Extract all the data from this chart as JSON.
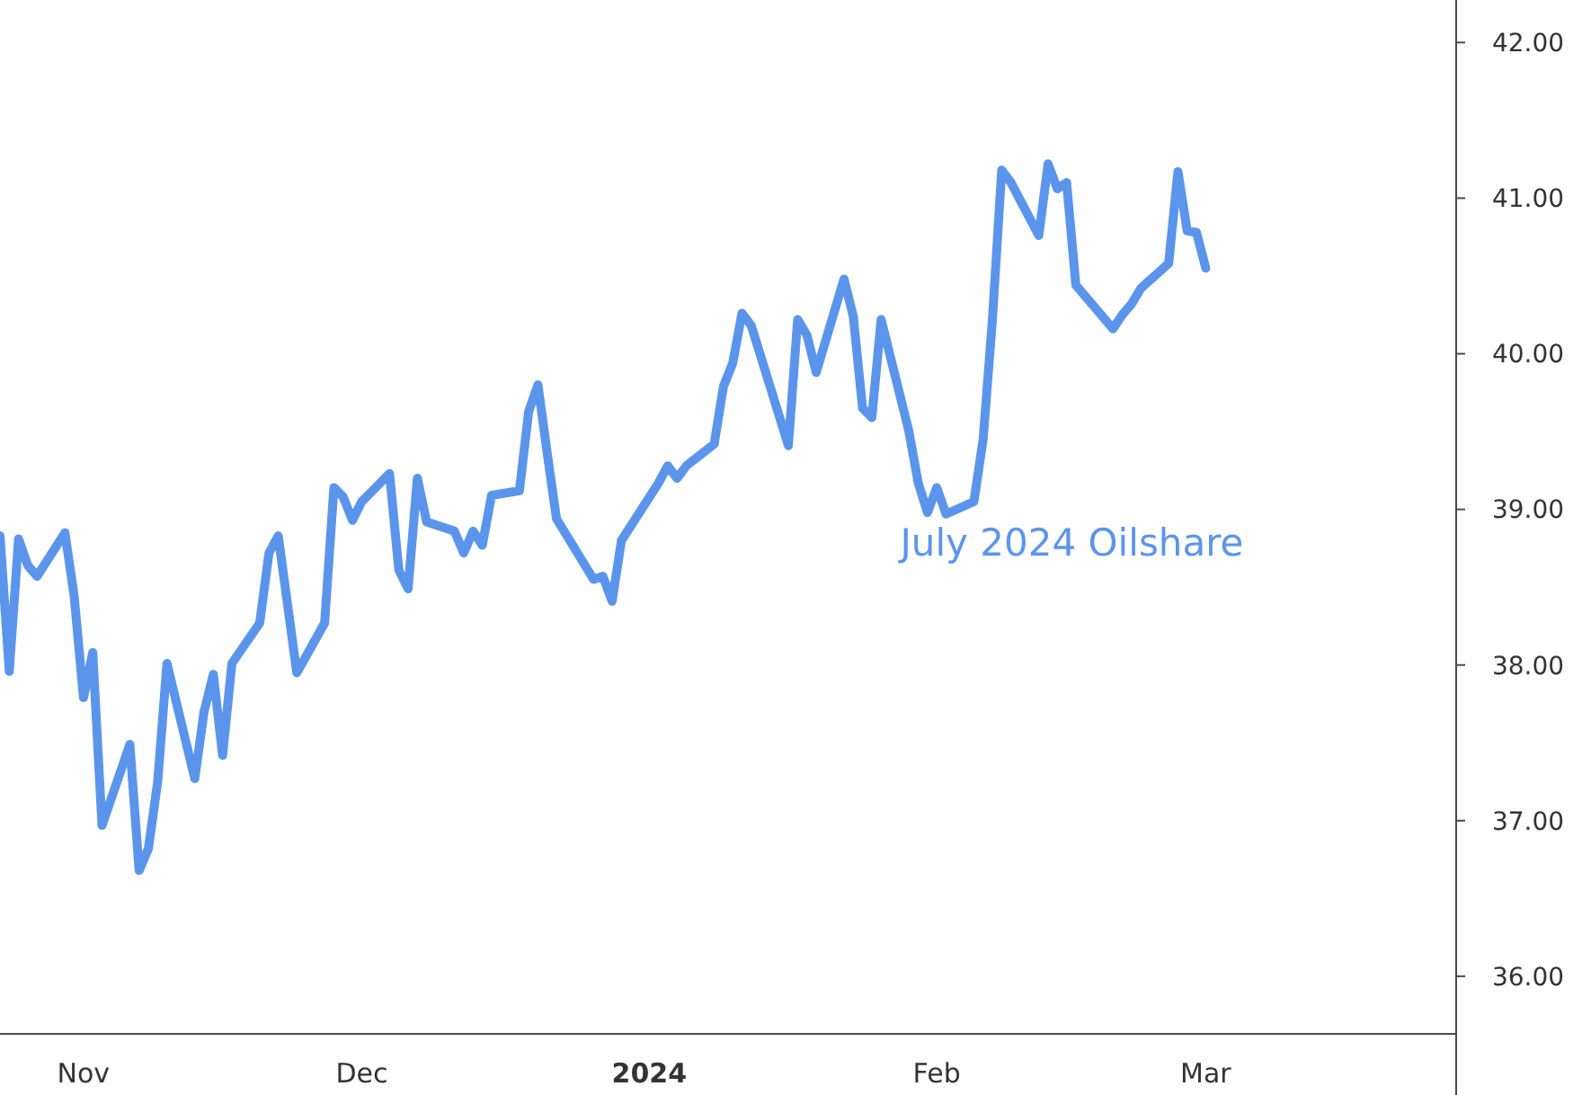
{
  "chart_data": {
    "type": "line",
    "xlim": [
      "2023-10-23",
      "2024-03-28"
    ],
    "ylim": [
      35.63,
      42.25
    ],
    "xticks": [
      {
        "value": "2023-11-01",
        "label": "Nov"
      },
      {
        "value": "2023-12-01",
        "label": "Dec"
      },
      {
        "value": "2024-01-01",
        "label": "2024"
      },
      {
        "value": "2024-02-01",
        "label": "Feb"
      },
      {
        "value": "2024-03-01",
        "label": "Mar"
      }
    ],
    "yticks": [
      {
        "value": 36,
        "label": "36.00"
      },
      {
        "value": 37,
        "label": "37.00"
      },
      {
        "value": 38,
        "label": "38.00"
      },
      {
        "value": 39,
        "label": "39.00"
      },
      {
        "value": 40,
        "label": "40.00"
      },
      {
        "value": 41,
        "label": "41.00"
      },
      {
        "value": 42,
        "label": "42.00"
      }
    ],
    "grid": false,
    "series": [
      {
        "name": "July 2024 Oilshare",
        "color": "#5b95eb",
        "x": [
          "2023-10-23",
          "2023-10-24",
          "2023-10-25",
          "2023-10-26",
          "2023-10-27",
          "2023-10-30",
          "2023-10-31",
          "2023-11-01",
          "2023-11-02",
          "2023-11-03",
          "2023-11-06",
          "2023-11-07",
          "2023-11-08",
          "2023-11-09",
          "2023-11-10",
          "2023-11-13",
          "2023-11-14",
          "2023-11-15",
          "2023-11-16",
          "2023-11-17",
          "2023-11-20",
          "2023-11-21",
          "2023-11-22",
          "2023-11-24",
          "2023-11-27",
          "2023-11-28",
          "2023-11-29",
          "2023-11-30",
          "2023-12-01",
          "2023-12-04",
          "2023-12-05",
          "2023-12-06",
          "2023-12-07",
          "2023-12-08",
          "2023-12-11",
          "2023-12-12",
          "2023-12-13",
          "2023-12-14",
          "2023-12-15",
          "2023-12-18",
          "2023-12-19",
          "2023-12-20",
          "2023-12-21",
          "2023-12-22",
          "2023-12-26",
          "2023-12-27",
          "2023-12-28",
          "2023-12-29",
          "2024-01-02",
          "2024-01-03",
          "2024-01-04",
          "2024-01-05",
          "2024-01-08",
          "2024-01-09",
          "2024-01-10",
          "2024-01-11",
          "2024-01-12",
          "2024-01-16",
          "2024-01-17",
          "2024-01-18",
          "2024-01-19",
          "2024-01-22",
          "2024-01-23",
          "2024-01-24",
          "2024-01-25",
          "2024-01-26",
          "2024-01-29",
          "2024-01-30",
          "2024-01-31",
          "2024-02-01",
          "2024-02-02",
          "2024-02-05",
          "2024-02-06",
          "2024-02-07",
          "2024-02-08",
          "2024-02-09",
          "2024-02-12",
          "2024-02-13",
          "2024-02-14",
          "2024-02-15",
          "2024-02-16",
          "2024-02-20",
          "2024-02-21",
          "2024-02-22",
          "2024-02-23",
          "2024-02-26",
          "2024-02-27",
          "2024-02-28",
          "2024-02-29",
          "2024-03-01"
        ],
        "values": [
          38.83,
          37.96,
          38.81,
          38.64,
          38.57,
          38.85,
          38.44,
          37.79,
          38.08,
          36.97,
          37.49,
          36.68,
          36.82,
          37.25,
          38.01,
          37.27,
          37.7,
          37.94,
          37.42,
          38.01,
          38.27,
          38.72,
          38.83,
          37.95,
          38.27,
          39.14,
          39.08,
          38.93,
          39.05,
          39.23,
          38.61,
          38.49,
          39.2,
          38.92,
          38.86,
          38.72,
          38.86,
          38.77,
          39.09,
          39.12,
          39.63,
          39.8,
          39.36,
          38.94,
          38.55,
          38.57,
          38.41,
          38.8,
          39.17,
          39.28,
          39.2,
          39.28,
          39.42,
          39.79,
          39.94,
          40.26,
          40.18,
          39.41,
          40.22,
          40.12,
          39.88,
          40.48,
          40.24,
          39.65,
          39.59,
          40.22,
          39.5,
          39.17,
          38.98,
          39.14,
          38.97,
          39.05,
          39.45,
          40.22,
          41.18,
          41.1,
          40.76,
          41.22,
          41.06,
          41.1,
          40.44,
          40.16,
          40.25,
          40.32,
          40.42,
          40.58,
          41.17,
          40.79,
          40.78,
          40.55
        ]
      }
    ]
  }
}
